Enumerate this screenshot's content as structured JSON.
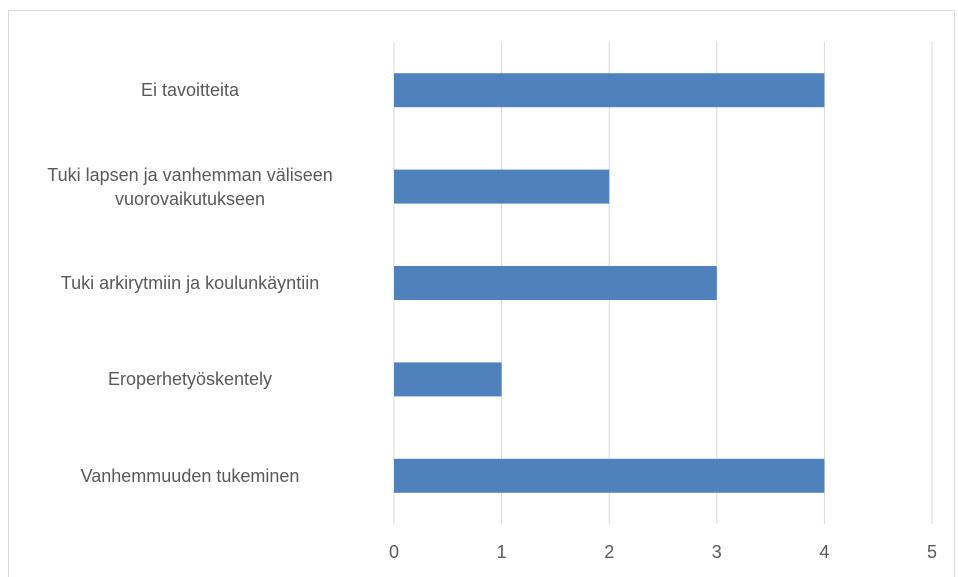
{
  "chart_data": {
    "type": "bar",
    "orientation": "horizontal",
    "categories": [
      "Ei tavoitteita",
      "Tuki lapsen ja vanhemman väliseen vuorovaikutukseen",
      "Tuki arkirytmiin ja koulunkäyntiin",
      "Eroperhetyöskentely",
      "Vanhemmuuden tukeminen"
    ],
    "values": [
      4,
      2,
      3,
      1,
      4
    ],
    "color": "#4f81bd",
    "xlim": [
      0,
      5
    ],
    "xticks": [
      0,
      1,
      2,
      3,
      4,
      5
    ],
    "grid": true
  }
}
